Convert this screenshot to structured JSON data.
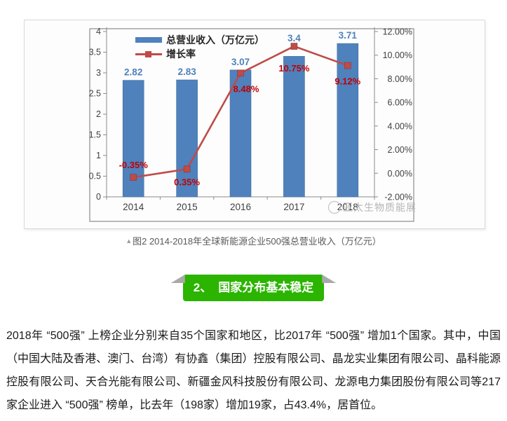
{
  "chart": {
    "legend": [
      {
        "label": "总营业收入（万亿元）",
        "swatch": "bar"
      },
      {
        "label": "增长率",
        "swatch": "line-marker"
      }
    ],
    "watermark": {
      "logo": "circle-logo",
      "text": "亚太生物质能展"
    }
  },
  "chart_data": {
    "type": "bar+line combo",
    "categories": [
      "2014",
      "2015",
      "2016",
      "2017",
      "2018"
    ],
    "series": [
      {
        "name": "总营业收入（万亿元）",
        "type": "bar",
        "axis": "left",
        "values": [
          2.82,
          2.83,
          3.07,
          3.4,
          3.71
        ],
        "labels": [
          "2.82",
          "2.83",
          "3.07",
          "3.4",
          "3.71"
        ],
        "color": "#4f81bd",
        "label_color": "#4f81bd"
      },
      {
        "name": "增长率",
        "type": "line",
        "axis": "right",
        "values": [
          -0.35,
          0.35,
          8.48,
          10.75,
          9.12
        ],
        "labels": [
          "-0.35%",
          "0.35%",
          "8.48%",
          "10.75%",
          "9.12%"
        ],
        "color": "#be4b48",
        "label_color": "#c00000"
      }
    ],
    "left_axis": {
      "min": 0,
      "max": 4,
      "ticks": [
        "4",
        "3.5",
        "3",
        "2.5",
        "2",
        "1.5",
        "1",
        "0.5",
        "0"
      ]
    },
    "right_axis": {
      "min": -2,
      "max": 12,
      "ticks": [
        "12.00%",
        "10.00%",
        "8.00%",
        "6.00%",
        "4.00%",
        "2.00%",
        "0.00%",
        "-2.00%"
      ]
    },
    "grid": false,
    "legend_position": "top-left",
    "title": "",
    "axis_color": "#3f3f3f"
  },
  "caption": {
    "prefix": "▲",
    "text": "图2 2014-2018年全球新能源企业500强总营业收入（万亿元）"
  },
  "section_banner": {
    "number": "2、",
    "title": "国家分布基本稳定",
    "bg_color": "#2bb400",
    "fold_color": "#a9a9a9"
  },
  "paragraph": "2018年 “500强” 上榜企业分别来自35个国家和地区，比2017年 “500强” 增加1个国家。其中，中国（中国大陆及香港、澳门、台湾）有协鑫（集团）控股有限公司、晶龙实业集团有限公司、晶科能源控股有限公司、天合光能有限公司、新疆金风科技股份有限公司、龙源电力集团股份有限公司等217家企业进入 “500强” 榜单，比去年（198家）增加19家，占43.4%，居首位。"
}
